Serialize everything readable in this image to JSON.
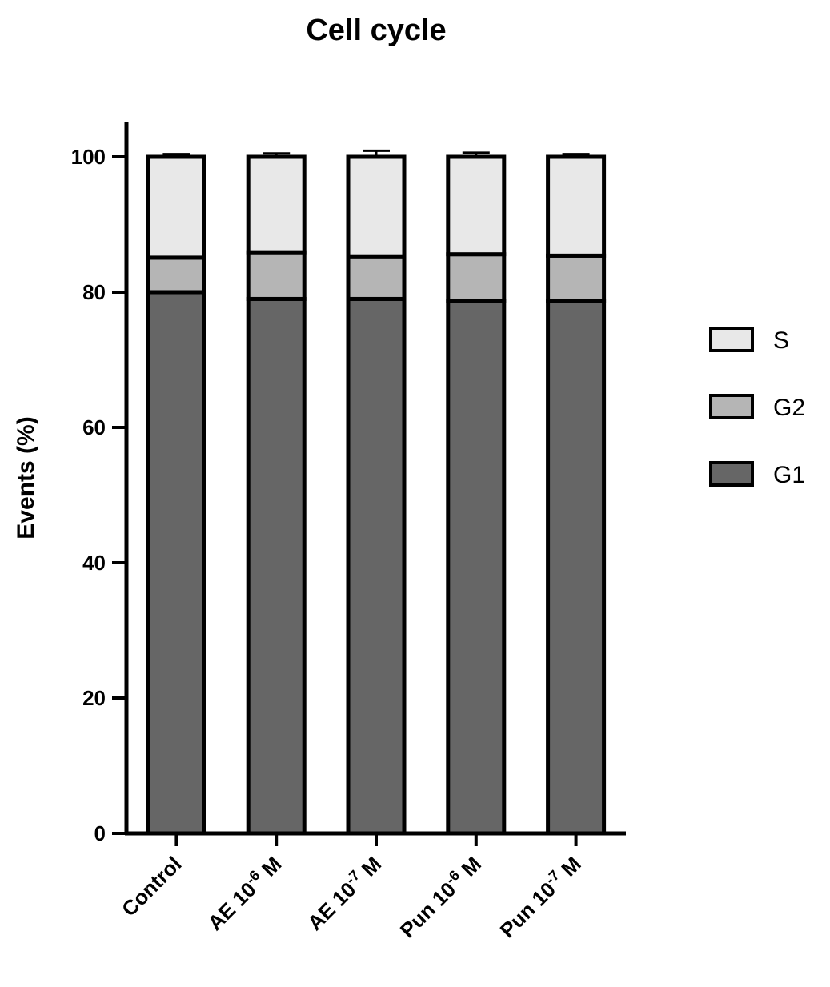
{
  "chart_data": {
    "type": "bar",
    "stacked": true,
    "title": "Cell cycle",
    "xlabel": "",
    "ylabel": "Events (%)",
    "ylim": [
      0,
      105
    ],
    "yticks": [
      "0",
      "20",
      "40",
      "60",
      "80",
      "100"
    ],
    "categories": [
      {
        "base": "Control",
        "exp": "",
        "suffix": ""
      },
      {
        "base": "AE 10",
        "exp": "-6",
        "suffix": " M"
      },
      {
        "base": "AE 10",
        "exp": "-7",
        "suffix": " M"
      },
      {
        "base": "Pun 10",
        "exp": "-6",
        "suffix": " M"
      },
      {
        "base": "Pun 10",
        "exp": "-7",
        "suffix": " M"
      }
    ],
    "series": [
      {
        "name": "G1",
        "color": "#666666",
        "values": [
          80.0,
          79.0,
          79.0,
          78.7,
          78.7
        ],
        "errors": [
          0.8,
          1.1,
          0.5,
          0.6,
          0.5
        ]
      },
      {
        "name": "G2",
        "color": "#b5b5b5",
        "values": [
          5.1,
          6.9,
          6.3,
          6.9,
          6.7
        ],
        "errors": [
          1.0,
          0.9,
          0.9,
          0.5,
          0.7
        ]
      },
      {
        "name": "S",
        "color": "#e8e8e8",
        "values": [
          14.9,
          14.1,
          14.7,
          14.4,
          14.6
        ],
        "errors": [
          0.4,
          0.5,
          0.9,
          0.6,
          0.4
        ]
      }
    ],
    "legend": {
      "position": "right",
      "order": [
        "S",
        "G2",
        "G1"
      ]
    },
    "grid": false
  }
}
